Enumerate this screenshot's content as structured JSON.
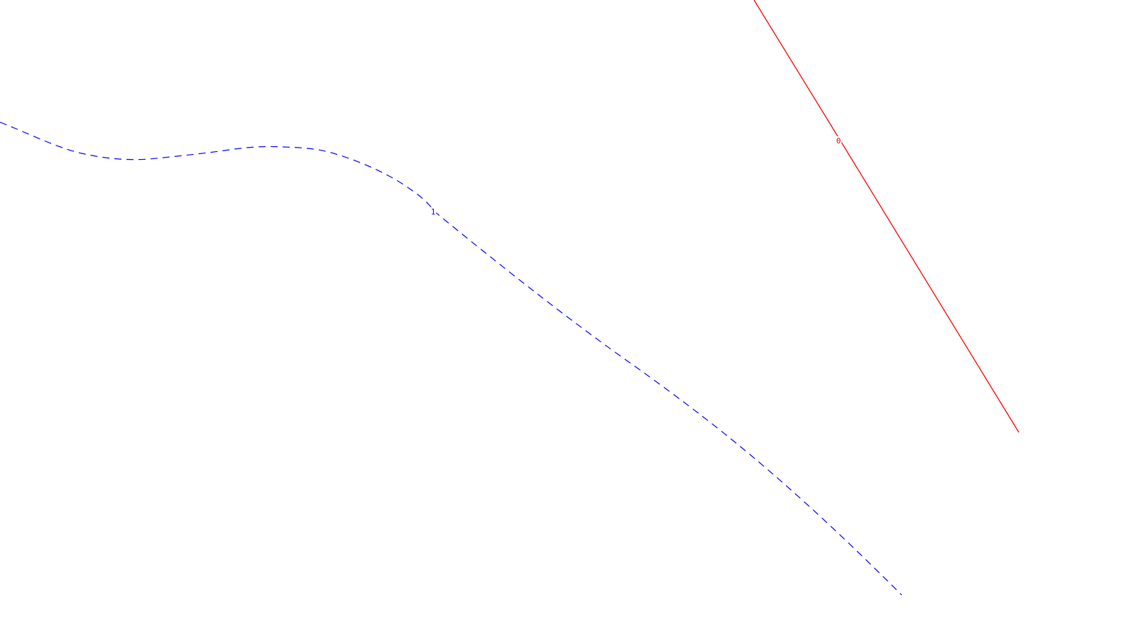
{
  "lines": [
    {
      "id": "line-0",
      "label": "0",
      "color": "#ff0000",
      "style": "solid"
    },
    {
      "id": "line-1",
      "label": "1",
      "color": "#0000ff",
      "style": "dashed"
    }
  ]
}
